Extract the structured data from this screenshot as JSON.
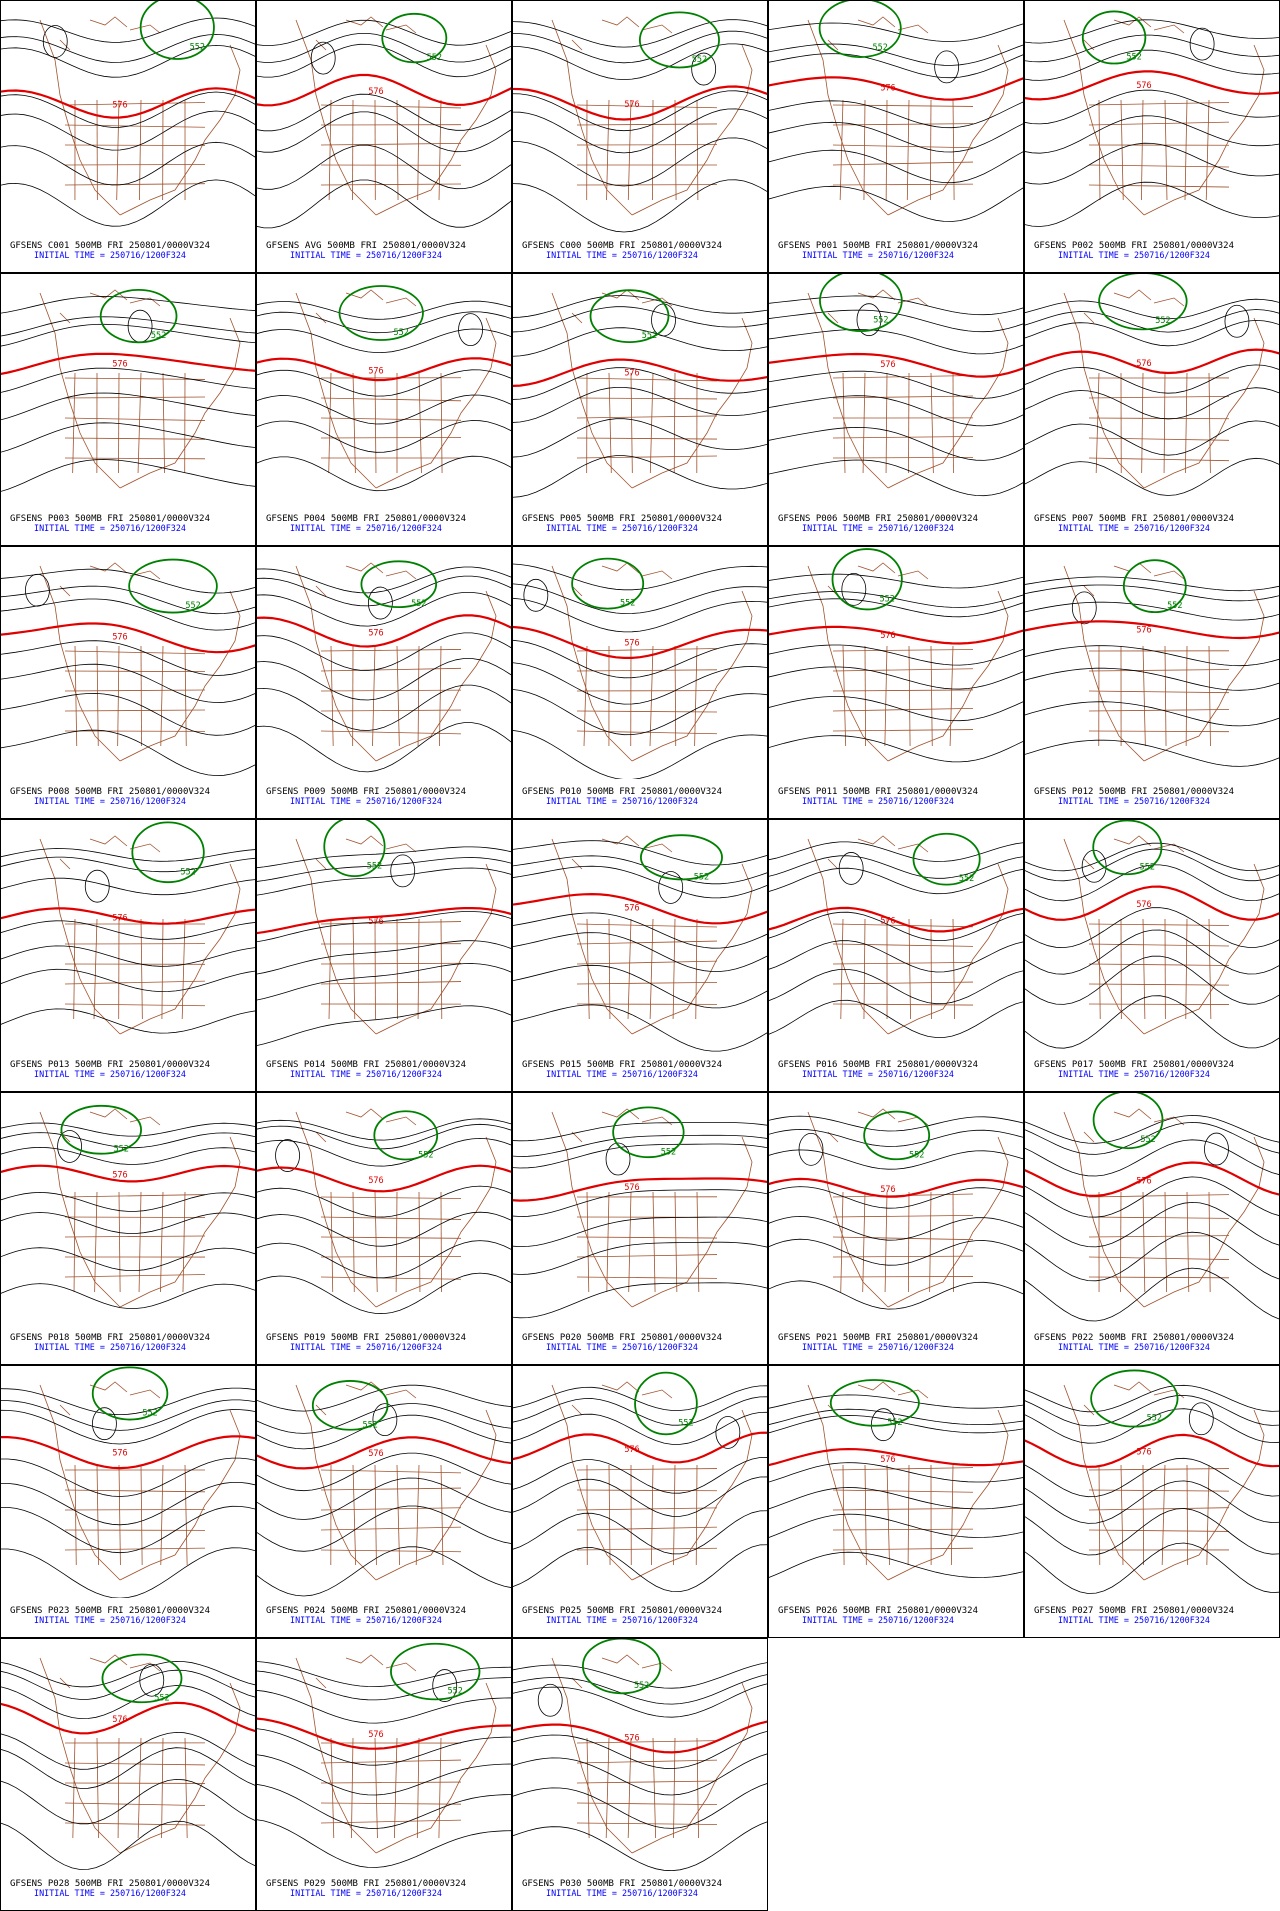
{
  "panels": [
    {
      "title": "GFSENS C001 500MB FRI 250801/0000V324",
      "time": "INITIAL TIME = 250716/1200F324",
      "contours": [
        "576",
        "552"
      ]
    },
    {
      "title": "GFSENS AVG 500MB FRI 250801/0000V324",
      "time": "INITIAL TIME = 250716/1200F324",
      "contours": [
        "576",
        "552"
      ]
    },
    {
      "title": "GFSENS C000 500MB FRI 250801/0000V324",
      "time": "INITIAL TIME = 250716/1200F324",
      "contours": [
        "576",
        "552"
      ]
    },
    {
      "title": "GFSENS P001 500MB FRI 250801/0000V324",
      "time": "INITIAL TIME = 250716/1200F324",
      "contours": [
        "576",
        "552"
      ]
    },
    {
      "title": "GFSENS P002 500MB FRI 250801/0000V324",
      "time": "INITIAL TIME = 250716/1200F324",
      "contours": [
        "576",
        "552"
      ]
    },
    {
      "title": "GFSENS P003 500MB FRI 250801/0000V324",
      "time": "INITIAL TIME = 250716/1200F324",
      "contours": [
        "576",
        "552"
      ]
    },
    {
      "title": "GFSENS P004 500MB FRI 250801/0000V324",
      "time": "INITIAL TIME = 250716/1200F324",
      "contours": [
        "576",
        "552"
      ]
    },
    {
      "title": "GFSENS P005 500MB FRI 250801/0000V324",
      "time": "INITIAL TIME = 250716/1200F324",
      "contours": [
        "576",
        "552"
      ]
    },
    {
      "title": "GFSENS P006 500MB FRI 250801/0000V324",
      "time": "INITIAL TIME = 250716/1200F324",
      "contours": [
        "576",
        "552"
      ]
    },
    {
      "title": "GFSENS P007 500MB FRI 250801/0000V324",
      "time": "INITIAL TIME = 250716/1200F324",
      "contours": [
        "576",
        "552"
      ]
    },
    {
      "title": "GFSENS P008 500MB FRI 250801/0000V324",
      "time": "INITIAL TIME = 250716/1200F324",
      "contours": [
        "576",
        "552"
      ]
    },
    {
      "title": "GFSENS P009 500MB FRI 250801/0000V324",
      "time": "INITIAL TIME = 250716/1200F324",
      "contours": [
        "576",
        "552"
      ]
    },
    {
      "title": "GFSENS P010 500MB FRI 250801/0000V324",
      "time": "INITIAL TIME = 250716/1200F324",
      "contours": [
        "576",
        "552"
      ]
    },
    {
      "title": "GFSENS P011 500MB FRI 250801/0000V324",
      "time": "INITIAL TIME = 250716/1200F324",
      "contours": [
        "576",
        "552"
      ]
    },
    {
      "title": "GFSENS P012 500MB FRI 250801/0000V324",
      "time": "INITIAL TIME = 250716/1200F324",
      "contours": [
        "576",
        "552"
      ]
    },
    {
      "title": "GFSENS P013 500MB FRI 250801/0000V324",
      "time": "INITIAL TIME = 250716/1200F324",
      "contours": [
        "576",
        "552"
      ]
    },
    {
      "title": "GFSENS P014 500MB FRI 250801/0000V324",
      "time": "INITIAL TIME = 250716/1200F324",
      "contours": [
        "576",
        "552"
      ]
    },
    {
      "title": "GFSENS P015 500MB FRI 250801/0000V324",
      "time": "INITIAL TIME = 250716/1200F324",
      "contours": [
        "576",
        "552"
      ]
    },
    {
      "title": "GFSENS P016 500MB FRI 250801/0000V324",
      "time": "INITIAL TIME = 250716/1200F324",
      "contours": [
        "576",
        "552"
      ]
    },
    {
      "title": "GFSENS P017 500MB FRI 250801/0000V324",
      "time": "INITIAL TIME = 250716/1200F324",
      "contours": [
        "576",
        "552"
      ]
    },
    {
      "title": "GFSENS P018 500MB FRI 250801/0000V324",
      "time": "INITIAL TIME = 250716/1200F324",
      "contours": [
        "576",
        "552"
      ]
    },
    {
      "title": "GFSENS P019 500MB FRI 250801/0000V324",
      "time": "INITIAL TIME = 250716/1200F324",
      "contours": [
        "576",
        "552"
      ]
    },
    {
      "title": "GFSENS P020 500MB FRI 250801/0000V324",
      "time": "INITIAL TIME = 250716/1200F324",
      "contours": [
        "576",
        "552"
      ]
    },
    {
      "title": "GFSENS P021 500MB FRI 250801/0000V324",
      "time": "INITIAL TIME = 250716/1200F324",
      "contours": [
        "576",
        "552"
      ]
    },
    {
      "title": "GFSENS P022 500MB FRI 250801/0000V324",
      "time": "INITIAL TIME = 250716/1200F324",
      "contours": [
        "576",
        "552"
      ]
    },
    {
      "title": "GFSENS P023 500MB FRI 250801/0000V324",
      "time": "INITIAL TIME = 250716/1200F324",
      "contours": [
        "576",
        "552"
      ]
    },
    {
      "title": "GFSENS P024 500MB FRI 250801/0000V324",
      "time": "INITIAL TIME = 250716/1200F324",
      "contours": [
        "576",
        "552"
      ]
    },
    {
      "title": "GFSENS P025 500MB FRI 250801/0000V324",
      "time": "INITIAL TIME = 250716/1200F324",
      "contours": [
        "576",
        "552"
      ]
    },
    {
      "title": "GFSENS P026 500MB FRI 250801/0000V324",
      "time": "INITIAL TIME = 250716/1200F324",
      "contours": [
        "576",
        "552"
      ]
    },
    {
      "title": "GFSENS P027 500MB FRI 250801/0000V324",
      "time": "INITIAL TIME = 250716/1200F324",
      "contours": [
        "576",
        "552"
      ]
    },
    {
      "title": "GFSENS P028 500MB FRI 250801/0000V324",
      "time": "INITIAL TIME = 250716/1200F324",
      "contours": [
        "576",
        "552"
      ]
    },
    {
      "title": "GFSENS P029 500MB FRI 250801/0000V324",
      "time": "INITIAL TIME = 250716/1200F324",
      "contours": [
        "576",
        "552"
      ]
    },
    {
      "title": "GFSENS P030 500MB FRI 250801/0000V324",
      "time": "INITIAL TIME = 250716/1200F324",
      "contours": [
        "576",
        "552"
      ]
    }
  ]
}
